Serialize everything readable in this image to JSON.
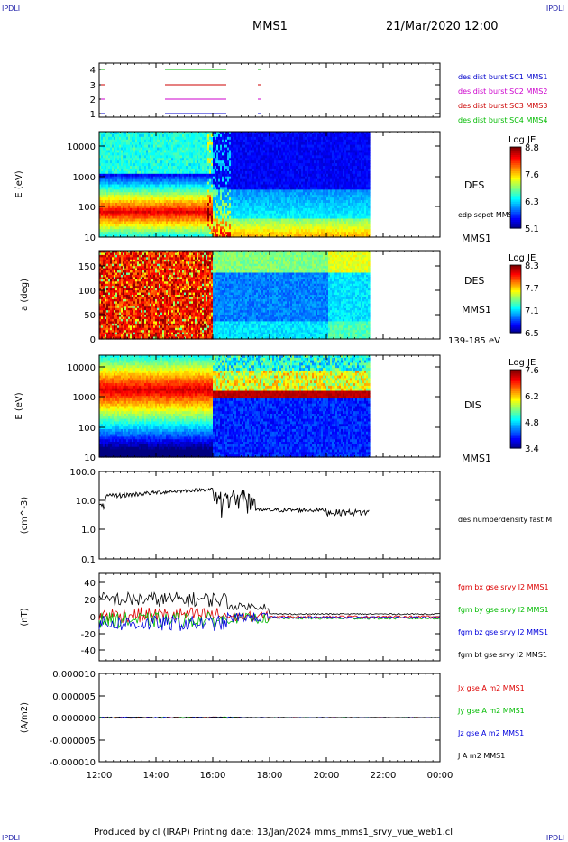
{
  "header": {
    "corner_left": "IPDLI",
    "corner_right": "IPDLI",
    "spacecraft": "MMS1",
    "datetime": "21/Mar/2020 12:00"
  },
  "footer": {
    "text": "Produced by cl (IRAP)   Printing date: 13/Jan/2024   mms_mms1_srvy_vue_web1.cl",
    "corner_left": "IPDLI",
    "corner_right": "IPDLI"
  },
  "time_axis": {
    "ticks": [
      "12:00",
      "14:00",
      "16:00",
      "18:00",
      "20:00",
      "22:00",
      "00:00"
    ],
    "range_hours": [
      12,
      24
    ]
  },
  "chart_data": [
    {
      "type": "line",
      "name": "burst-availability",
      "yticks": [
        "1",
        "2",
        "3",
        "4"
      ],
      "legend": [
        "des dist burst SC1 MMS1",
        "des dist burst SC2 MMS2",
        "des dist burst SC3 MMS3",
        "des dist burst SC4 MMS4"
      ],
      "legend_colors": [
        "#0000cc",
        "#cc00cc",
        "#cc0000",
        "#00bb00"
      ]
    },
    {
      "type": "heatmap",
      "name": "des-energy-spectrogram",
      "ylabel": "E (eV)",
      "yscale": "log",
      "yticks": [
        "10",
        "100",
        "1000",
        "10000"
      ],
      "label": "DES",
      "sublabel": "MMS1",
      "overlay": "edp scpot MMS1",
      "colorbar": {
        "title": "Log JE",
        "ticks": [
          "8.8",
          "7.6",
          "6.3",
          "5.1"
        ]
      }
    },
    {
      "type": "heatmap",
      "name": "des-pitch-angle",
      "ylabel": "a (deg)",
      "yticks": [
        "0",
        "50",
        "100",
        "150"
      ],
      "label": "DES",
      "sublabel": "MMS1",
      "note": "139-185 eV",
      "colorbar": {
        "title": "Log JE",
        "ticks": [
          "8.3",
          "7.7",
          "7.1",
          "6.5"
        ]
      }
    },
    {
      "type": "heatmap",
      "name": "dis-energy-spectrogram",
      "ylabel": "E (eV)",
      "yscale": "log",
      "yticks": [
        "10",
        "100",
        "1000",
        "10000"
      ],
      "label": "DIS",
      "sublabel": "MMS1",
      "colorbar": {
        "title": "Log JE",
        "ticks": [
          "7.6",
          "6.2",
          "4.8",
          "3.4"
        ]
      }
    },
    {
      "type": "line",
      "name": "density",
      "ylabel": "(cm^-3)",
      "yscale": "log",
      "yticks": [
        "0.1",
        "1.0",
        "10.0",
        "100.0"
      ],
      "legend": [
        "des numberdensity fast M"
      ],
      "legend_colors": [
        "#000000"
      ]
    },
    {
      "type": "line",
      "name": "magnetic-field",
      "ylabel": "(nT)",
      "yticks": [
        "-40",
        "-20",
        "0",
        "20",
        "40"
      ],
      "legend": [
        "fgm bx gse srvy l2 MMS1",
        "fgm by gse srvy l2 MMS1",
        "fgm bz gse srvy l2 MMS1",
        "fgm bt gse srvy l2 MMS1"
      ],
      "legend_colors": [
        "#dd0000",
        "#00bb00",
        "#0000dd",
        "#000000"
      ]
    },
    {
      "type": "line",
      "name": "current-density",
      "ylabel": "(A/m2)",
      "yticks": [
        "-0.000010",
        "-0.000005",
        "0.000000",
        "0.000005",
        "0.000010"
      ],
      "legend": [
        "Jx gse A m2 MMS1",
        "Jy gse A m2 MMS1",
        "Jz gse A m2 MMS1",
        "J A m2 MMS1"
      ],
      "legend_colors": [
        "#dd0000",
        "#00bb00",
        "#0000dd",
        "#000000"
      ]
    }
  ]
}
